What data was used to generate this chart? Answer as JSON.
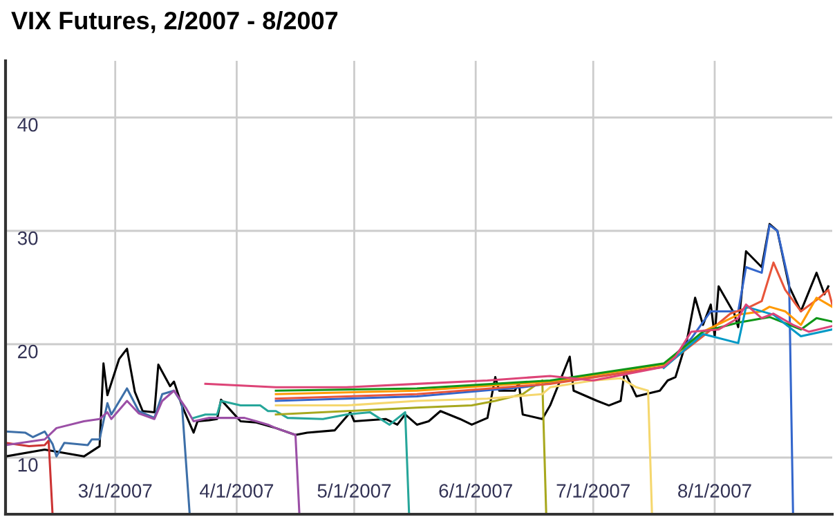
{
  "chart_data": {
    "type": "line",
    "title": "VIX Futures, 2/2007 - 8/2007",
    "xlim": [
      "2007-02-01",
      "2007-08-31"
    ],
    "xticks": [
      {
        "value": "2007-03-01",
        "label": "3/1/2007"
      },
      {
        "value": "2007-04-01",
        "label": "4/1/2007"
      },
      {
        "value": "2007-05-01",
        "label": "5/1/2007"
      },
      {
        "value": "2007-06-01",
        "label": "6/1/2007"
      },
      {
        "value": "2007-07-01",
        "label": "7/1/2007"
      },
      {
        "value": "2007-08-01",
        "label": "8/1/2007"
      }
    ],
    "ylim": [
      5,
      45
    ],
    "yticks": [
      10,
      20,
      30,
      40
    ],
    "grid": true,
    "legend": false,
    "marker": "none",
    "line_style": "solid",
    "series": [
      {
        "color": "#000000",
        "x": [
          "2007-02-01",
          "2007-02-11",
          "2007-02-21",
          "2007-02-25",
          "2007-02-26",
          "2007-02-27",
          "2007-03-02",
          "2007-03-04",
          "2007-03-06",
          "2007-03-08",
          "2007-03-11",
          "2007-03-12",
          "2007-03-15",
          "2007-03-16",
          "2007-03-18",
          "2007-03-21",
          "2007-03-22",
          "2007-03-25",
          "2007-03-27",
          "2007-03-28",
          "2007-04-02",
          "2007-04-06",
          "2007-04-09",
          "2007-04-11",
          "2007-04-16",
          "2007-04-19",
          "2007-04-26",
          "2007-04-30",
          "2007-05-01",
          "2007-05-09",
          "2007-05-12",
          "2007-05-14",
          "2007-05-17",
          "2007-05-20",
          "2007-05-23",
          "2007-05-28",
          "2007-05-31",
          "2007-06-04",
          "2007-06-06",
          "2007-06-07",
          "2007-06-11",
          "2007-06-12",
          "2007-06-13",
          "2007-06-18",
          "2007-06-20",
          "2007-06-25",
          "2007-06-26",
          "2007-07-02",
          "2007-07-05",
          "2007-07-08",
          "2007-07-09",
          "2007-07-12",
          "2007-07-18",
          "2007-07-20",
          "2007-07-22",
          "2007-07-25",
          "2007-07-27",
          "2007-07-29",
          "2007-07-31",
          "2007-08-01",
          "2007-08-02",
          "2007-08-06",
          "2007-08-07",
          "2007-08-09",
          "2007-08-13",
          "2007-08-15",
          "2007-08-17",
          "2007-08-20",
          "2007-08-23",
          "2007-08-27",
          "2007-08-29",
          "2007-08-30"
        ],
        "values": [
          10.1,
          10.7,
          10.1,
          11,
          18.3,
          15.5,
          18.7,
          19.6,
          15.8,
          14.1,
          14,
          18.2,
          16.3,
          16.7,
          14.6,
          12.2,
          13.2,
          13.3,
          13.4,
          15.1,
          13.2,
          13.1,
          12.8,
          12.6,
          12,
          12.2,
          12.4,
          14,
          13.2,
          13.4,
          12.9,
          13.8,
          12.9,
          13.2,
          14.1,
          13.4,
          12.9,
          13.5,
          17.1,
          15.9,
          15.9,
          16.6,
          13.8,
          13.4,
          14.6,
          18.9,
          15.9,
          15,
          14.6,
          15,
          17.6,
          15.4,
          15.9,
          16.8,
          17.1,
          20.5,
          24.1,
          21.7,
          23.5,
          20.7,
          25.1,
          22.7,
          21.5,
          28.2,
          26.8,
          30.6,
          30,
          25.1,
          22.9,
          26.3,
          24.4,
          25.1
        ]
      },
      {
        "color": "#cc3333",
        "x": [
          "2007-02-01",
          "2007-02-07",
          "2007-02-11",
          "2007-02-12",
          "2007-02-13"
        ],
        "values": [
          11.3,
          11,
          11.1,
          11.5,
          5
        ]
      },
      {
        "color": "#3d6fa8",
        "x": [
          "2007-02-01",
          "2007-02-06",
          "2007-02-08",
          "2007-02-11",
          "2007-02-13",
          "2007-02-14",
          "2007-02-16",
          "2007-02-22",
          "2007-02-23",
          "2007-02-25",
          "2007-02-27",
          "2007-02-28",
          "2007-03-04",
          "2007-03-07",
          "2007-03-11",
          "2007-03-13",
          "2007-03-16",
          "2007-03-18",
          "2007-03-20"
        ],
        "values": [
          12.3,
          12.2,
          11.8,
          12.3,
          11.2,
          10.1,
          11.3,
          11.1,
          11.6,
          11.6,
          14.8,
          13.8,
          16.1,
          14.1,
          13.5,
          15.6,
          15.9,
          14.8,
          5
        ]
      },
      {
        "color": "#9b4fa6",
        "x": [
          "2007-02-01",
          "2007-02-11",
          "2007-02-14",
          "2007-02-21",
          "2007-02-25",
          "2007-02-27",
          "2007-02-28",
          "2007-03-04",
          "2007-03-07",
          "2007-03-11",
          "2007-03-13",
          "2007-03-16",
          "2007-03-19",
          "2007-03-21",
          "2007-03-25",
          "2007-04-03",
          "2007-04-06",
          "2007-04-09",
          "2007-04-11",
          "2007-04-16",
          "2007-04-17"
        ],
        "values": [
          11.1,
          11.6,
          12.6,
          13.2,
          13.4,
          14,
          13.4,
          15,
          13.9,
          13.4,
          15,
          15.9,
          14.4,
          13.2,
          13.5,
          13.5,
          13.2,
          12.9,
          12.6,
          12,
          5
        ]
      },
      {
        "color": "#26a69a",
        "x": [
          "2007-03-21",
          "2007-03-24",
          "2007-03-27",
          "2007-03-28",
          "2007-04-02",
          "2007-04-07",
          "2007-04-09",
          "2007-04-11",
          "2007-04-14",
          "2007-04-23",
          "2007-04-29",
          "2007-05-05",
          "2007-05-10",
          "2007-05-14",
          "2007-05-15"
        ],
        "values": [
          13.5,
          13.8,
          13.8,
          15,
          14.6,
          14.6,
          14.1,
          14.1,
          13.5,
          13.4,
          13.8,
          14,
          12.9,
          14,
          5
        ]
      },
      {
        "color": "#a8a81e",
        "x": [
          "2007-04-11",
          "2007-04-29",
          "2007-05-17",
          "2007-05-31",
          "2007-06-06",
          "2007-06-13",
          "2007-06-18",
          "2007-06-19"
        ],
        "values": [
          13.8,
          14.1,
          14.4,
          14.6,
          15,
          15.6,
          16.8,
          5
        ]
      },
      {
        "color": "#f5d76e",
        "x": [
          "2007-04-11",
          "2007-04-29",
          "2007-05-17",
          "2007-06-04",
          "2007-06-18",
          "2007-06-20",
          "2007-07-01",
          "2007-07-08",
          "2007-07-12",
          "2007-07-15",
          "2007-07-16"
        ],
        "values": [
          14.6,
          14.6,
          15,
          15.2,
          15.6,
          16.2,
          16.8,
          17,
          16.2,
          15.9,
          5
        ]
      },
      {
        "color": "#3366cc",
        "x": [
          "2007-04-11",
          "2007-05-17",
          "2007-06-13",
          "2007-07-01",
          "2007-07-19",
          "2007-07-26",
          "2007-07-31",
          "2007-08-07",
          "2007-08-09",
          "2007-08-13",
          "2007-08-15",
          "2007-08-17",
          "2007-08-20",
          "2007-08-21"
        ],
        "values": [
          15,
          15.4,
          16.2,
          17.1,
          18,
          20.5,
          22.9,
          22.9,
          26.8,
          26.3,
          30.5,
          30,
          25.4,
          5
        ]
      },
      {
        "color": "#e8553a",
        "x": [
          "2007-04-11",
          "2007-05-17",
          "2007-06-20",
          "2007-07-19",
          "2007-07-29",
          "2007-08-05",
          "2007-08-10",
          "2007-08-13",
          "2007-08-16",
          "2007-08-19",
          "2007-08-23",
          "2007-08-27",
          "2007-08-30",
          "2007-08-31"
        ],
        "values": [
          15.2,
          15.6,
          16.5,
          18,
          20.7,
          22.7,
          23.3,
          23.8,
          27.2,
          24.8,
          22.9,
          23.9,
          24.8,
          23.5
        ]
      },
      {
        "color": "#ff9900",
        "x": [
          "2007-04-11",
          "2007-05-17",
          "2007-06-20",
          "2007-07-19",
          "2007-07-29",
          "2007-08-07",
          "2007-08-13",
          "2007-08-15",
          "2007-08-19",
          "2007-08-23",
          "2007-08-27",
          "2007-08-31"
        ],
        "values": [
          15.6,
          15.9,
          16.7,
          18.2,
          21.1,
          22.6,
          22.9,
          23.3,
          22.9,
          21.7,
          24.1,
          23.3
        ]
      },
      {
        "color": "#109618",
        "x": [
          "2007-04-11",
          "2007-05-17",
          "2007-06-20",
          "2007-07-19",
          "2007-07-29",
          "2007-08-07",
          "2007-08-15",
          "2007-08-23",
          "2007-08-27",
          "2007-08-31"
        ],
        "values": [
          15.9,
          16.1,
          16.8,
          18.3,
          21.1,
          21.9,
          22.4,
          21.3,
          22.3,
          22
        ]
      },
      {
        "color": "#0099c6",
        "x": [
          "2007-07-19",
          "2007-07-29",
          "2007-08-07",
          "2007-08-09",
          "2007-08-16",
          "2007-08-23",
          "2007-08-31"
        ],
        "values": [
          17.9,
          20.9,
          20.1,
          23.3,
          22.6,
          20.7,
          21.3
        ]
      },
      {
        "color": "#dd4477",
        "x": [
          "2007-03-24",
          "2007-04-11",
          "2007-04-29",
          "2007-05-17",
          "2007-06-04",
          "2007-06-20",
          "2007-07-01",
          "2007-07-19",
          "2007-07-22",
          "2007-07-26",
          "2007-08-02",
          "2007-08-07",
          "2007-08-09",
          "2007-08-13",
          "2007-08-16",
          "2007-08-21",
          "2007-08-25",
          "2007-08-31"
        ],
        "values": [
          16.5,
          16.2,
          16.2,
          16.5,
          16.8,
          17.2,
          16.8,
          18,
          18.9,
          21.1,
          21.3,
          22.3,
          23.5,
          22.3,
          22.7,
          21.7,
          21.1,
          21.6
        ]
      }
    ]
  }
}
